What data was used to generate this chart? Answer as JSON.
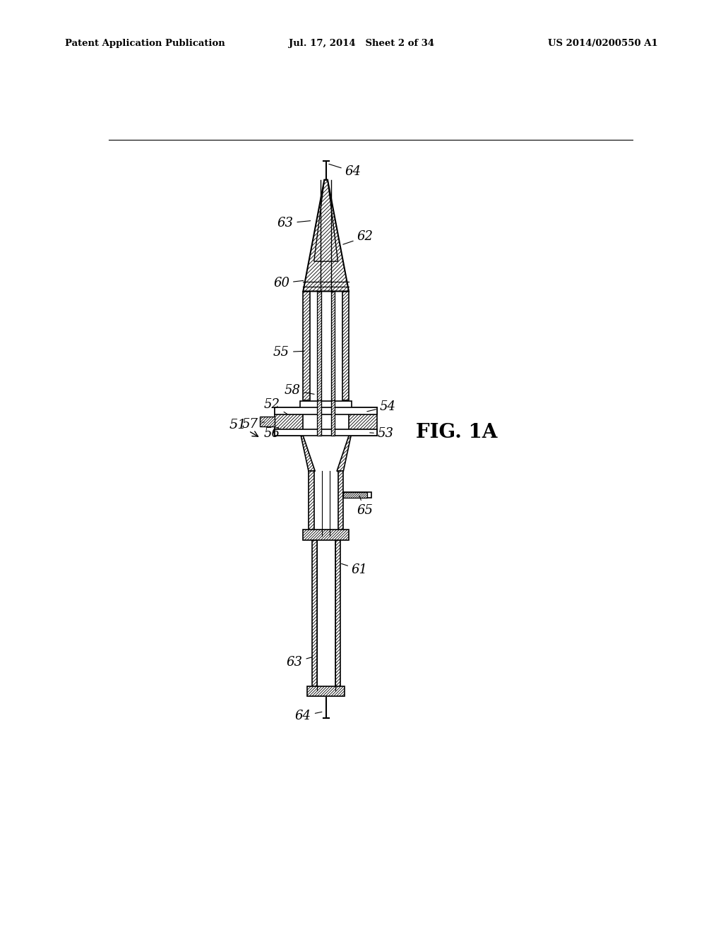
{
  "header_left": "Patent Application Publication",
  "header_center": "Jul. 17, 2014   Sheet 2 of 34",
  "header_right": "US 2014/0200550 A1",
  "fig_label": "FIG. 1A",
  "background_color": "#ffffff",
  "line_color": "#000000"
}
